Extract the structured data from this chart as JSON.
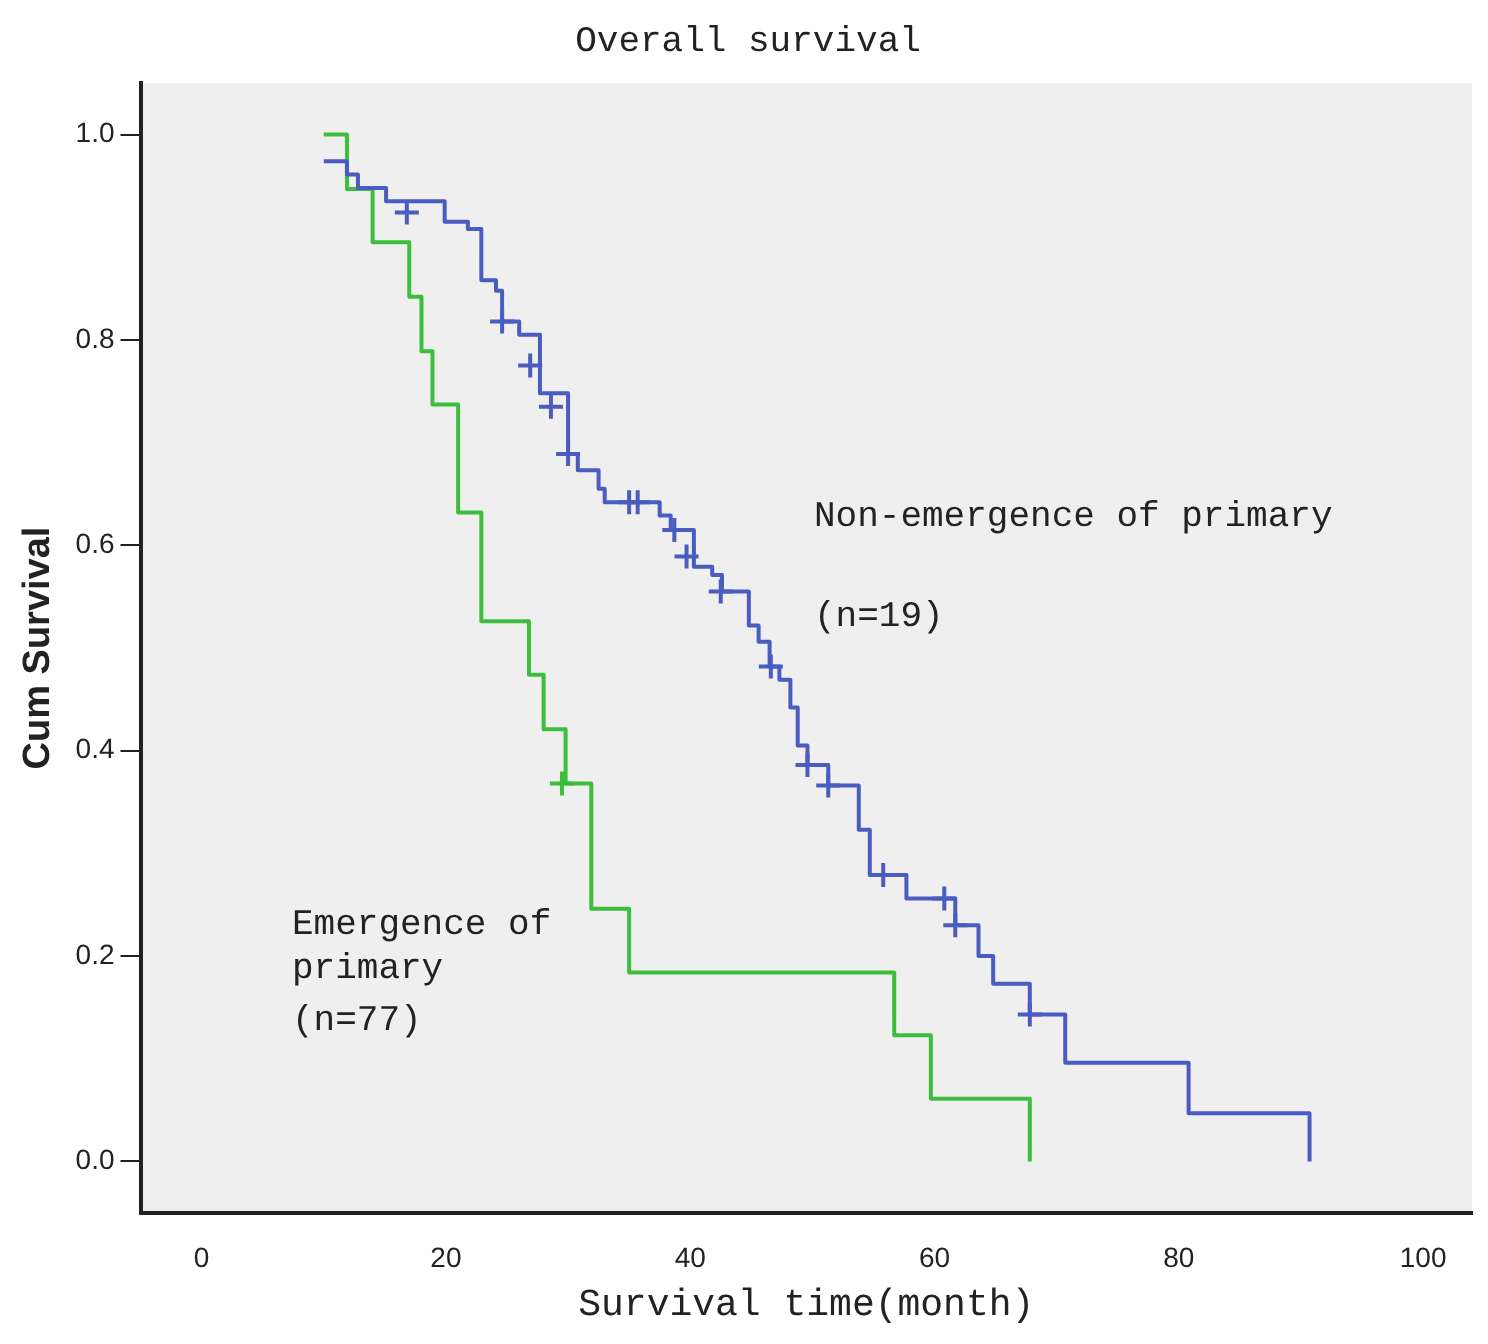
{
  "chart_data": {
    "type": "step",
    "title": "Overall survival",
    "xlabel": "Survival time(month)",
    "ylabel": "Cum Survival",
    "xlim": [
      -5,
      104
    ],
    "xticks": [
      0,
      20,
      40,
      60,
      80,
      100
    ],
    "ylim": [
      -0.05,
      1.05
    ],
    "yticks": [
      {
        "value": 0,
        "label": "0.0"
      },
      {
        "value": 0.2,
        "label": "0.2"
      },
      {
        "value": 0.4,
        "label": "0.4"
      },
      {
        "value": 0.6,
        "label": "0.6"
      },
      {
        "value": 0.8,
        "label": "0.8"
      },
      {
        "value": 1,
        "label": "1.0"
      }
    ],
    "grid": false,
    "legend": false,
    "marker": "none",
    "line_style": "solid",
    "annotations": [
      "Non-emergence of primary",
      "(n=19)",
      "Emergence of primary",
      "(n=77)"
    ],
    "series": [
      {
        "color": "#4a5cc0",
        "x": [
          10,
          11.9,
          12.8,
          15.1,
          19.9,
          21.8,
          22.9,
          24.1,
          24.6,
          26,
          27.7,
          30,
          30.8,
          32.5,
          33,
          37.5,
          38.4,
          40.3,
          41.8,
          42.6,
          44.8,
          45.6,
          46.5,
          47.3,
          48.2,
          48.8,
          49.6,
          51.3,
          53.8,
          54.7,
          57.7,
          61.7,
          63.6,
          64.8,
          67.8,
          70.7,
          80.8,
          90.7
        ],
        "values": [
          0.974,
          0.961,
          0.948,
          0.935,
          0.915,
          0.908,
          0.858,
          0.848,
          0.818,
          0.805,
          0.748,
          0.689,
          0.673,
          0.655,
          0.642,
          0.629,
          0.615,
          0.579,
          0.571,
          0.555,
          0.522,
          0.506,
          0.482,
          0.469,
          0.442,
          0.405,
          0.386,
          0.366,
          0.323,
          0.279,
          0.256,
          0.23,
          0.2,
          0.173,
          0.143,
          0.096,
          0.047,
          0
        ]
      },
      {
        "color": "#3cbe3c",
        "x": [
          10,
          11.9,
          14,
          17,
          18,
          18.9,
          21,
          22.9,
          26.8,
          28,
          29.8,
          31.9,
          31.9,
          35,
          56.7,
          59.7,
          67.8
        ],
        "values": [
          1,
          0.947,
          0.895,
          0.842,
          0.789,
          0.737,
          0.632,
          0.526,
          0.474,
          0.421,
          0.368,
          0.307,
          0.246,
          0.184,
          0.123,
          0.061,
          0
        ]
      },
      {
        "type": "scatter",
        "marker": "cross",
        "color": "#4a5cc0",
        "x": [
          16.8,
          24.6,
          26.9,
          28.6,
          30,
          35,
          35.7,
          38.7,
          39.7,
          42.5,
          46.6,
          49.6,
          51.3,
          55.8,
          60.8,
          61.7,
          67.8
        ],
        "values": [
          0.924,
          0.818,
          0.775,
          0.735,
          0.689,
          0.642,
          0.642,
          0.615,
          0.589,
          0.555,
          0.482,
          0.386,
          0.366,
          0.279,
          0.256,
          0.23,
          0.143
        ]
      },
      {
        "type": "scatter",
        "marker": "cross",
        "color": "#3cbe3c",
        "x": [
          29.5
        ],
        "values": [
          0.368
        ]
      }
    ]
  }
}
